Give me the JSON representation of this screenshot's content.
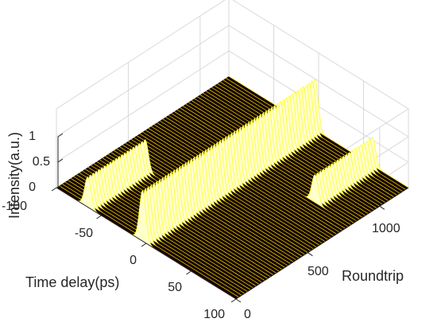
{
  "chart_data": {
    "type": "waterfall-3d",
    "title": "",
    "colormap": "hot",
    "xlabel": "Time delay(ps)",
    "ylabel": "Roundtrip",
    "zlabel": "Intensity(a.u.)",
    "x_ticks": [
      "-100",
      "-50",
      "0",
      "50",
      "100"
    ],
    "y_ticks": [
      "0",
      "500",
      "1000"
    ],
    "z_ticks": [
      "0",
      "0.5",
      "1"
    ],
    "xlim": [
      -100,
      100
    ],
    "ylim": [
      0,
      1200
    ],
    "zlim": [
      0,
      1
    ],
    "grid": true,
    "series": [
      {
        "x_center": -4,
        "amplitude": 1.0,
        "roundtrip_start": 0,
        "roundtrip_end": 1200
      },
      {
        "x_center": 60,
        "amplitude": 0.55,
        "roundtrip_start": 800,
        "roundtrip_end": 1200
      },
      {
        "x_center": -65,
        "amplitude": 0.6,
        "roundtrip_start": 0,
        "roundtrip_end": 400
      }
    ]
  }
}
